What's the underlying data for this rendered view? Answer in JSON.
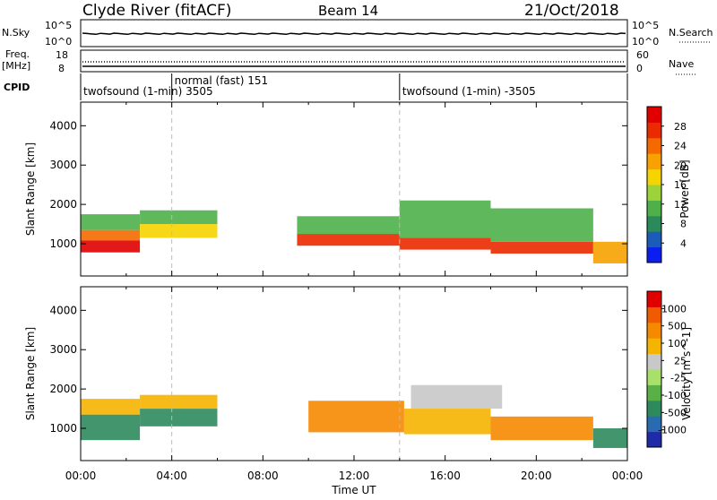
{
  "header": {
    "title": "Clyde River (fitACF)",
    "beam": "Beam 14",
    "date": "21/Oct/2018"
  },
  "strips": {
    "nsky_label": "N.Sky",
    "nsky_top": "10^5",
    "nsky_bottom": "10^0",
    "nsearch_label": "N.Search",
    "nsearch_top": "10^5",
    "nsearch_bottom": "10^0",
    "freq_label": "Freq.",
    "freq_unit": "[MHz]",
    "freq_top": "18",
    "freq_bottom": "8",
    "nave_label": "Nave",
    "nave_top": "60",
    "nave_bottom": "0",
    "cpid_label": "CPID"
  },
  "cpid_segments": [
    {
      "start_hour": 0,
      "end_hour": 4,
      "label": "twofsound (1-min) 3505",
      "row": 2
    },
    {
      "start_hour": 4,
      "end_hour": 14,
      "label": "normal (fast) 151",
      "row": 1
    },
    {
      "start_hour": 14,
      "end_hour": 24,
      "label": "twofsound (1-min) -3505",
      "row": 2
    }
  ],
  "chart_data": [
    {
      "type": "heatmap",
      "name": "power",
      "ylabel": "Slant Range [km]",
      "xlabel": "",
      "xlim": [
        0,
        24
      ],
      "ylim": [
        180,
        4600
      ],
      "yticks": [
        1000,
        2000,
        3000,
        4000
      ],
      "colorbar": {
        "label": "Power [dB]",
        "ticks": [
          "28",
          "24",
          "20",
          "16",
          "12",
          "8",
          "4"
        ],
        "colors": [
          "#0b1ef0",
          "#1c5bb8",
          "#2a8a5a",
          "#4fb04a",
          "#9dd33a",
          "#f5d400",
          "#f7a200",
          "#f56a00",
          "#ea2a00",
          "#e00000"
        ]
      },
      "regions": [
        {
          "t0": 0.0,
          "t1": 2.6,
          "r0": 780,
          "r1": 1080,
          "level": 9
        },
        {
          "t0": 0.0,
          "t1": 2.6,
          "r0": 1080,
          "r1": 1350,
          "level": 7
        },
        {
          "t0": 0.0,
          "t1": 2.6,
          "r0": 1350,
          "r1": 1750,
          "level": 3
        },
        {
          "t0": 2.6,
          "t1": 6.0,
          "r0": 1150,
          "r1": 1500,
          "level": 5
        },
        {
          "t0": 2.6,
          "t1": 6.0,
          "r0": 1500,
          "r1": 1850,
          "level": 3
        },
        {
          "t0": 9.5,
          "t1": 14.0,
          "r0": 950,
          "r1": 1250,
          "level": 8
        },
        {
          "t0": 9.5,
          "t1": 14.0,
          "r0": 1250,
          "r1": 1700,
          "level": 3
        },
        {
          "t0": 14.0,
          "t1": 18.0,
          "r0": 850,
          "r1": 1150,
          "level": 8
        },
        {
          "t0": 14.0,
          "t1": 18.0,
          "r0": 1150,
          "r1": 2100,
          "level": 3
        },
        {
          "t0": 18.0,
          "t1": 22.5,
          "r0": 750,
          "r1": 1050,
          "level": 8
        },
        {
          "t0": 18.0,
          "t1": 22.5,
          "r0": 1050,
          "r1": 1900,
          "level": 3
        },
        {
          "t0": 22.5,
          "t1": 24.0,
          "r0": 500,
          "r1": 1050,
          "level": 6
        }
      ]
    },
    {
      "type": "heatmap",
      "name": "velocity",
      "ylabel": "Slant Range [km]",
      "xlabel": "Time UT",
      "xlim": [
        0,
        24
      ],
      "ylim": [
        180,
        4600
      ],
      "yticks": [
        1000,
        2000,
        3000,
        4000
      ],
      "xticks": [
        "00:00",
        "04:00",
        "08:00",
        "12:00",
        "16:00",
        "20:00",
        "00:00"
      ],
      "colorbar": {
        "label": "Velocity [m s^-1]",
        "ticks": [
          "1000",
          "500",
          "100",
          "25",
          "-25",
          "-100",
          "-500",
          "-1000"
        ],
        "colors": [
          "#1e2aa8",
          "#2a6ab0",
          "#2e8a5c",
          "#58b046",
          "#a8e06a",
          "#c8c8c8",
          "#f5b400",
          "#f58a00",
          "#f05a00",
          "#e00000"
        ]
      },
      "regions": [
        {
          "t0": 0.0,
          "t1": 2.6,
          "r0": 700,
          "r1": 1350,
          "level": 2
        },
        {
          "t0": 0.0,
          "t1": 2.6,
          "r0": 1350,
          "r1": 1750,
          "level": 6
        },
        {
          "t0": 2.6,
          "t1": 6.0,
          "r0": 1050,
          "r1": 1500,
          "level": 2
        },
        {
          "t0": 2.6,
          "t1": 6.0,
          "r0": 1500,
          "r1": 1850,
          "level": 6
        },
        {
          "t0": 10.0,
          "t1": 14.2,
          "r0": 900,
          "r1": 1700,
          "level": 7
        },
        {
          "t0": 14.2,
          "t1": 18.0,
          "r0": 850,
          "r1": 1500,
          "level": 6
        },
        {
          "t0": 14.5,
          "t1": 18.5,
          "r0": 1500,
          "r1": 2100,
          "level": 5
        },
        {
          "t0": 18.0,
          "t1": 22.5,
          "r0": 700,
          "r1": 1300,
          "level": 7
        },
        {
          "t0": 22.5,
          "t1": 24.0,
          "r0": 500,
          "r1": 1000,
          "level": 2
        }
      ]
    }
  ]
}
